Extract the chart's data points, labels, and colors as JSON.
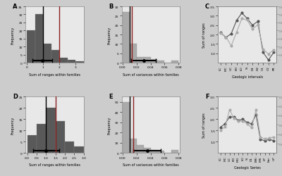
{
  "panel_A": {
    "bin_edges": [
      0.0,
      0.5,
      1.0,
      1.5,
      2.0,
      2.5,
      3.0,
      3.5
    ],
    "hist_counts": [
      20,
      30,
      12,
      8,
      3,
      2,
      1
    ],
    "bar_color": "#595959",
    "vline_black": 1.0,
    "vline_red": 2.0,
    "xlabel": "Sum of ranges within families",
    "ylabel": "Frequency",
    "xlim": [
      -0.1,
      3.5
    ],
    "ylim": [
      0,
      35
    ],
    "xticks": [
      0.0,
      1.0,
      2.0,
      3.0
    ],
    "yticks": [
      0,
      5,
      10,
      15,
      20,
      25,
      30,
      35
    ],
    "label": "A",
    "errorbar_y": 1.5,
    "errorbar_x": 0.95,
    "errorbar_xerr": 0.6
  },
  "panel_B": {
    "bin_edges": [
      0.0,
      0.01,
      0.02,
      0.03,
      0.04,
      0.05,
      0.06,
      0.07,
      0.08
    ],
    "hist_counts": [
      27,
      10,
      3,
      3,
      2,
      1,
      0,
      1
    ],
    "bar_color": "#aaaaaa",
    "vline_black": 0.01,
    "vline_red": 0.013,
    "xlabel": "Sum of variances within families",
    "ylabel": "Frequency",
    "xlim": [
      -0.001,
      0.082
    ],
    "ylim": [
      0,
      30
    ],
    "xticks": [
      0.0,
      0.02,
      0.04,
      0.06,
      0.08
    ],
    "yticks": [
      0,
      5,
      10,
      15,
      20,
      25,
      30
    ],
    "label": "B",
    "errorbar_y": 1.2,
    "errorbar_x": 0.03,
    "errorbar_xerr": 0.018
  },
  "panel_C": {
    "x_labels": [
      "LC",
      "MC",
      "UC",
      "EO",
      "LO",
      "Si",
      "D1",
      "D2",
      "C1",
      "C2",
      "PR"
    ],
    "y_ranges": [
      2.1,
      1.85,
      2.05,
      2.75,
      3.15,
      2.85,
      2.5,
      2.7,
      1.05,
      0.65,
      1.05
    ],
    "y_variances": [
      0.037,
      0.032,
      0.021,
      0.038,
      0.055,
      0.053,
      0.042,
      0.047,
      0.017,
      0.011,
      0.016
    ],
    "color_ranges": "#555555",
    "color_variances": "#aaaaaa",
    "xlabel": "Geologic intervals",
    "ylabel_left": "Sum of ranges",
    "ylabel_right": "Sum of variances",
    "ylim_left": [
      0.5,
      3.5
    ],
    "ylim_right": [
      0.0,
      0.07
    ],
    "yticks_left": [
      1.0,
      1.5,
      2.0,
      2.5,
      3.0,
      3.5
    ],
    "yticks_right": [
      0.01,
      0.02,
      0.03,
      0.04,
      0.05,
      0.06,
      0.07
    ],
    "label": "C"
  },
  "panel_D": {
    "bin_edges": [
      0.0,
      0.5,
      1.0,
      1.5,
      2.0,
      2.5,
      3.0
    ],
    "hist_counts": [
      8,
      13,
      20,
      14,
      5,
      3
    ],
    "bar_color": "#595959",
    "vline_black": 1.0,
    "vline_red": 1.5,
    "xlabel": "Sum of ranges within families",
    "ylabel": "Frequency",
    "xlim": [
      -0.1,
      3.0
    ],
    "ylim": [
      0,
      25
    ],
    "xticks": [
      0.0,
      0.5,
      1.0,
      1.5,
      2.0,
      2.5,
      3.0
    ],
    "yticks": [
      0,
      5,
      10,
      15,
      20,
      25
    ],
    "label": "D",
    "errorbar_y": 1.0,
    "errorbar_x": 1.0,
    "errorbar_xerr": 0.7
  },
  "panel_E": {
    "bin_edges": [
      0.0,
      0.01,
      0.02,
      0.03,
      0.04,
      0.05,
      0.06,
      0.07,
      0.08
    ],
    "hist_counts": [
      50,
      14,
      8,
      5,
      3,
      2,
      0,
      3
    ],
    "bar_color": "#aaaaaa",
    "vline_black": 0.01,
    "vline_red": 0.015,
    "xlabel": "Sum of variances within families",
    "ylabel": "Frequency",
    "xlim": [
      -0.001,
      0.082
    ],
    "ylim": [
      0,
      55
    ],
    "xticks": [
      0.0,
      0.02,
      0.04,
      0.06,
      0.08
    ],
    "yticks": [
      0,
      10,
      20,
      30,
      40,
      50
    ],
    "label": "E",
    "errorbar_y": 2.0,
    "errorbar_x": 0.035,
    "errorbar_xerr": 0.02
  },
  "panel_F": {
    "x_labels": [
      "LC",
      "MC",
      "UC",
      "EO",
      "MO",
      "LO",
      "Si",
      "D1",
      "EMi",
      "LMi",
      "LP",
      "Ear",
      "UP"
    ],
    "y_ranges": [
      1.65,
      1.8,
      2.1,
      2.1,
      1.95,
      2.0,
      1.85,
      1.8,
      2.2,
      1.1,
      1.05,
      1.1,
      1.05
    ],
    "y_variances": [
      0.024,
      0.028,
      0.046,
      0.037,
      0.034,
      0.034,
      0.031,
      0.027,
      0.046,
      0.017,
      0.015,
      0.016,
      0.017
    ],
    "color_ranges": "#555555",
    "color_variances": "#aaaaaa",
    "xlabel": "Geologic Series",
    "ylabel_left": "Sum of ranges",
    "ylabel_right": "Sum of variances",
    "ylim_left": [
      0.5,
      3.0
    ],
    "ylim_right": [
      0.0,
      0.06
    ],
    "yticks_left": [
      1.0,
      1.5,
      2.0,
      2.5,
      3.0
    ],
    "yticks_right": [
      0.01,
      0.02,
      0.03,
      0.04,
      0.05,
      0.06
    ],
    "label": "F"
  },
  "bg_color": "#e8e8e8",
  "plot_bg": "#e8e8e8"
}
